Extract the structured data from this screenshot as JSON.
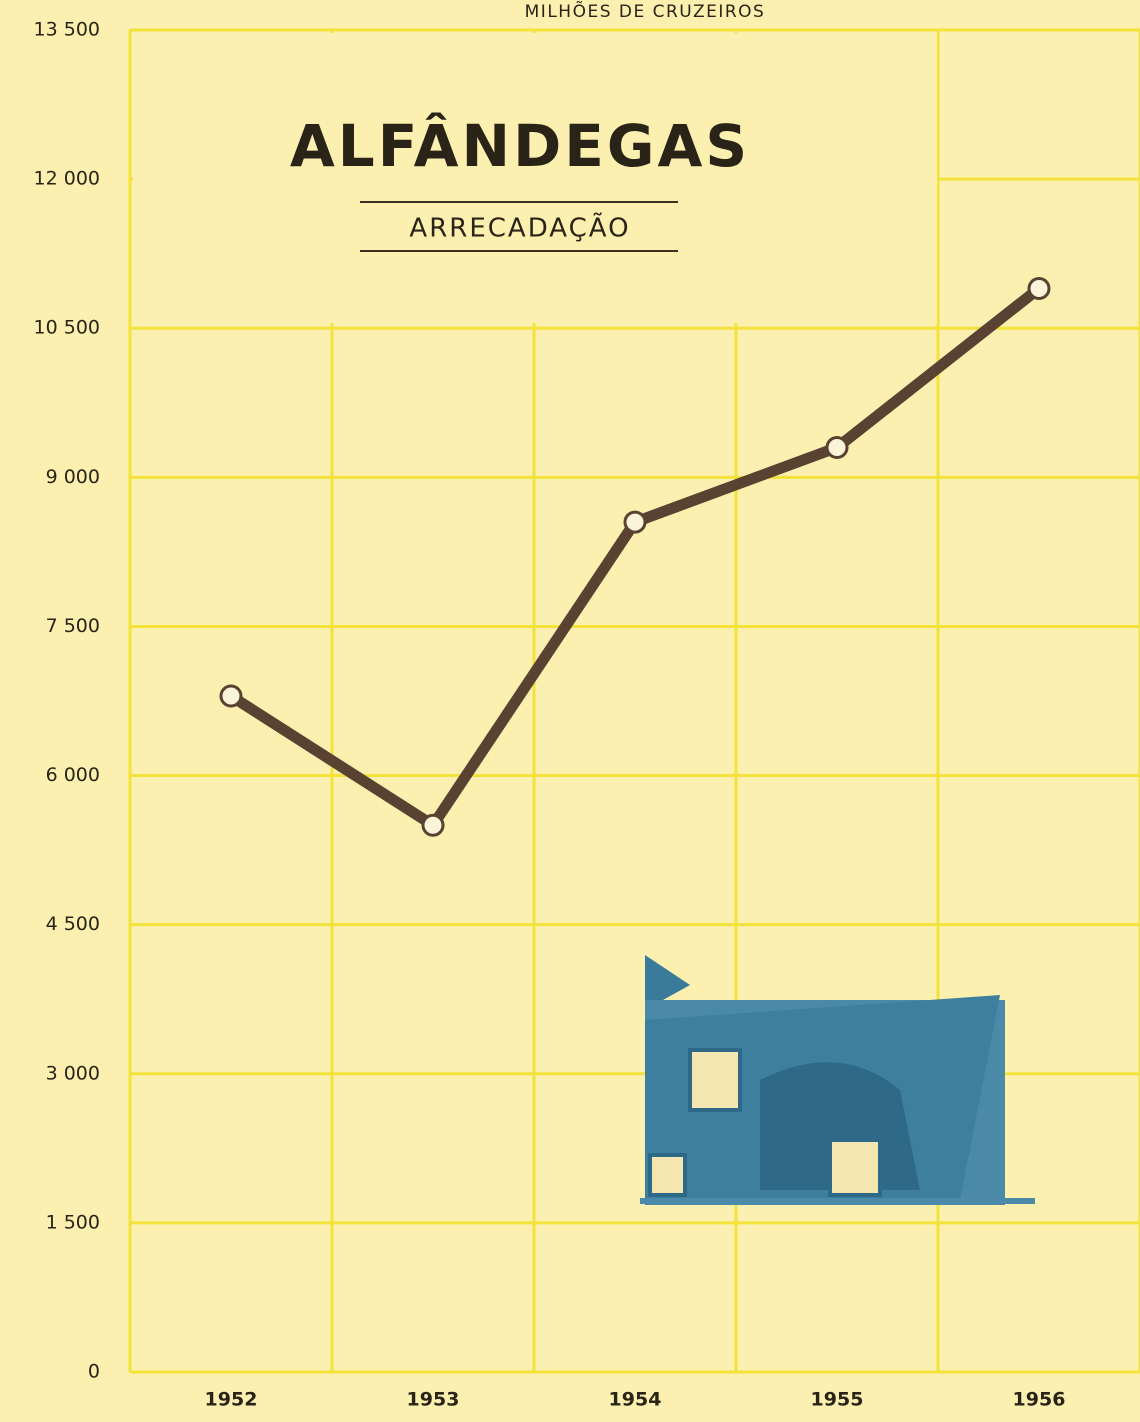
{
  "chart_data": {
    "type": "line",
    "title": "ALFÂNDEGAS",
    "subtitle": "ARRECADAÇÃO",
    "ylabel": "MILHÕES DE CRUZEIROS",
    "categories": [
      "1952",
      "1953",
      "1954",
      "1955",
      "1956"
    ],
    "series": [
      {
        "name": "Arrecadação",
        "color": "#5a4232",
        "values": [
          6800,
          5500,
          8550,
          9300,
          10900
        ]
      }
    ],
    "ylim": [
      0,
      13500
    ],
    "yticks": [
      0,
      {
        "value": 1500,
        "label": "1 500"
      },
      {
        "value": 3000,
        "label": "3 000"
      },
      {
        "value": 4500,
        "label": "4 500"
      },
      {
        "value": 6000,
        "label": "6 000"
      },
      {
        "value": 7500,
        "label": "7 500"
      },
      {
        "value": 9000,
        "label": "9 000"
      },
      {
        "value": 10500,
        "label": "10 500"
      },
      {
        "value": 12000,
        "label": "12 000"
      },
      {
        "value": 13500,
        "label": "13 500"
      }
    ],
    "grid": true,
    "grid_color": "#f2e23a"
  }
}
